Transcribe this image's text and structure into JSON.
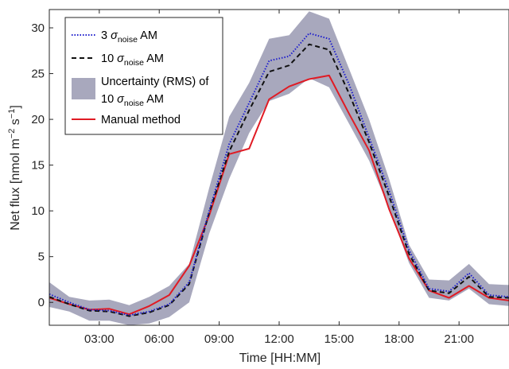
{
  "chart_data": {
    "type": "line",
    "xlabel_main": "Time ",
    "xlabel_unit": "[HH:MM]",
    "ylabel": {
      "prefix": "Net flux [nmol m",
      "exp1": "−2",
      "mid": " s",
      "exp2": "−1",
      "suffix": "]"
    },
    "x_ticks": [
      "03:00",
      "06:00",
      "09:00",
      "12:00",
      "15:00",
      "18:00",
      "21:00"
    ],
    "x_tick_hours": [
      3,
      6,
      9,
      12,
      15,
      18,
      21
    ],
    "xlim": [
      0.5,
      23.5
    ],
    "y_ticks": [
      "0",
      "5",
      "10",
      "15",
      "20",
      "25",
      "30"
    ],
    "y_tick_values": [
      0,
      5,
      10,
      15,
      20,
      25,
      30
    ],
    "ylim": [
      -2.5,
      32
    ],
    "x": [
      0.5,
      1.5,
      2.5,
      3.5,
      4.5,
      5.5,
      6.5,
      7.5,
      8.5,
      9.5,
      10.5,
      11.5,
      12.5,
      13.5,
      14.5,
      15.5,
      16.5,
      17.5,
      18.5,
      19.5,
      20.5,
      21.5,
      22.5,
      23.5
    ],
    "uncertainty_band": {
      "name": "Uncertainty (RMS) of 10 σnoise AM",
      "color": "#a8a8bd",
      "upper": [
        2.2,
        0.6,
        0.2,
        0.3,
        -0.3,
        0.6,
        1.8,
        4.2,
        12.5,
        20.3,
        24.0,
        28.8,
        29.2,
        31.8,
        31.0,
        25.5,
        20.0,
        13.5,
        6.3,
        2.5,
        2.4,
        4.2,
        2.0,
        1.9
      ],
      "lower": [
        -0.5,
        -1.0,
        -2.0,
        -2.0,
        -2.5,
        -2.3,
        -1.6,
        0.0,
        7.5,
        13.5,
        18.5,
        22.0,
        22.8,
        24.5,
        23.5,
        19.5,
        15.5,
        10.3,
        4.3,
        0.5,
        0.2,
        1.5,
        -0.2,
        -0.4
      ]
    },
    "series": [
      {
        "name": "3 σnoise AM",
        "color": "#1f1fcc",
        "style": "dotted",
        "values": [
          0.9,
          0.0,
          -0.8,
          -0.9,
          -1.4,
          -1.0,
          -0.2,
          2.2,
          10.0,
          17.3,
          21.8,
          26.4,
          26.9,
          29.4,
          28.8,
          23.8,
          18.0,
          12.2,
          5.7,
          1.5,
          1.2,
          3.2,
          0.8,
          0.6
        ]
      },
      {
        "name": "10 σnoise AM",
        "color": "#111111",
        "style": "dashed",
        "values": [
          0.6,
          -0.2,
          -0.9,
          -1.0,
          -1.5,
          -1.1,
          -0.3,
          2.0,
          9.8,
          16.5,
          21.0,
          25.2,
          25.9,
          28.2,
          27.6,
          22.8,
          17.5,
          11.6,
          5.3,
          1.3,
          1.0,
          2.8,
          0.6,
          0.5
        ]
      },
      {
        "name": "Manual method",
        "color": "#e01b24",
        "style": "solid",
        "values": [
          0.5,
          -0.2,
          -0.8,
          -0.7,
          -1.3,
          -0.4,
          0.8,
          4.0,
          9.5,
          16.2,
          16.8,
          22.2,
          23.6,
          24.4,
          24.8,
          20.6,
          16.6,
          10.2,
          4.8,
          1.3,
          0.5,
          1.8,
          0.5,
          0.2
        ]
      }
    ],
    "grid": false,
    "legend_position": "top-left"
  },
  "legend": {
    "item1_pre": "3 ",
    "item1_sigma": "σ",
    "item1_sub": "noise",
    "item1_post": " AM",
    "item2_pre": "10 ",
    "item2_sigma": "σ",
    "item2_sub": "noise",
    "item2_post": " AM",
    "item3_line1": "Uncertainty (RMS) of",
    "item3_pre": "10 ",
    "item3_sigma": "σ",
    "item3_sub": "noise",
    "item3_post": " AM",
    "item4": "Manual method"
  }
}
